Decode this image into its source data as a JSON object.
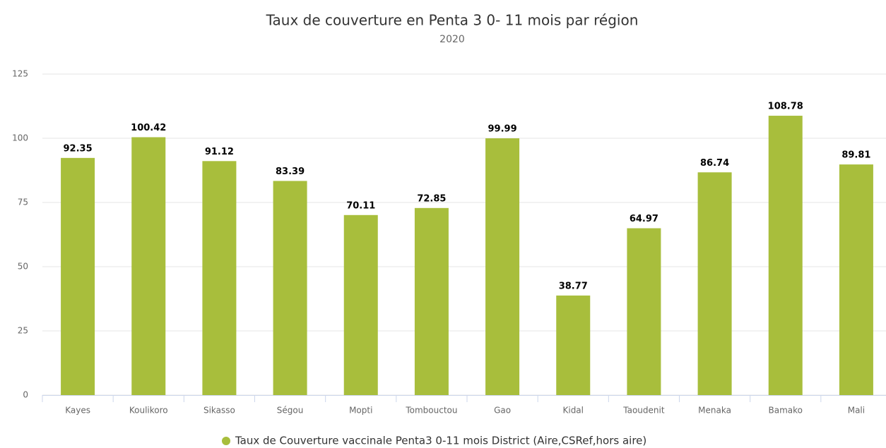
{
  "chart_data": {
    "type": "bar",
    "title": "Taux de couverture en Penta 3 0- 11 mois par région",
    "subtitle": "2020",
    "categories": [
      "Kayes",
      "Koulikoro",
      "Sikasso",
      "Ségou",
      "Mopti",
      "Tombouctou",
      "Gao",
      "Kidal",
      "Taoudenit",
      "Menaka",
      "Bamako",
      "Mali"
    ],
    "series": [
      {
        "name": "Taux de Couverture vaccinale Penta3 0-11 mois District (Aire,CSRef,hors aire)",
        "color": "#a8be3c",
        "values": [
          92.35,
          100.42,
          91.12,
          83.39,
          70.11,
          72.85,
          99.99,
          38.77,
          64.97,
          86.74,
          108.78,
          89.81
        ]
      }
    ],
    "ylim": [
      0,
      125
    ],
    "yticks": [
      0,
      25,
      50,
      75,
      100,
      125
    ],
    "grid": true
  }
}
